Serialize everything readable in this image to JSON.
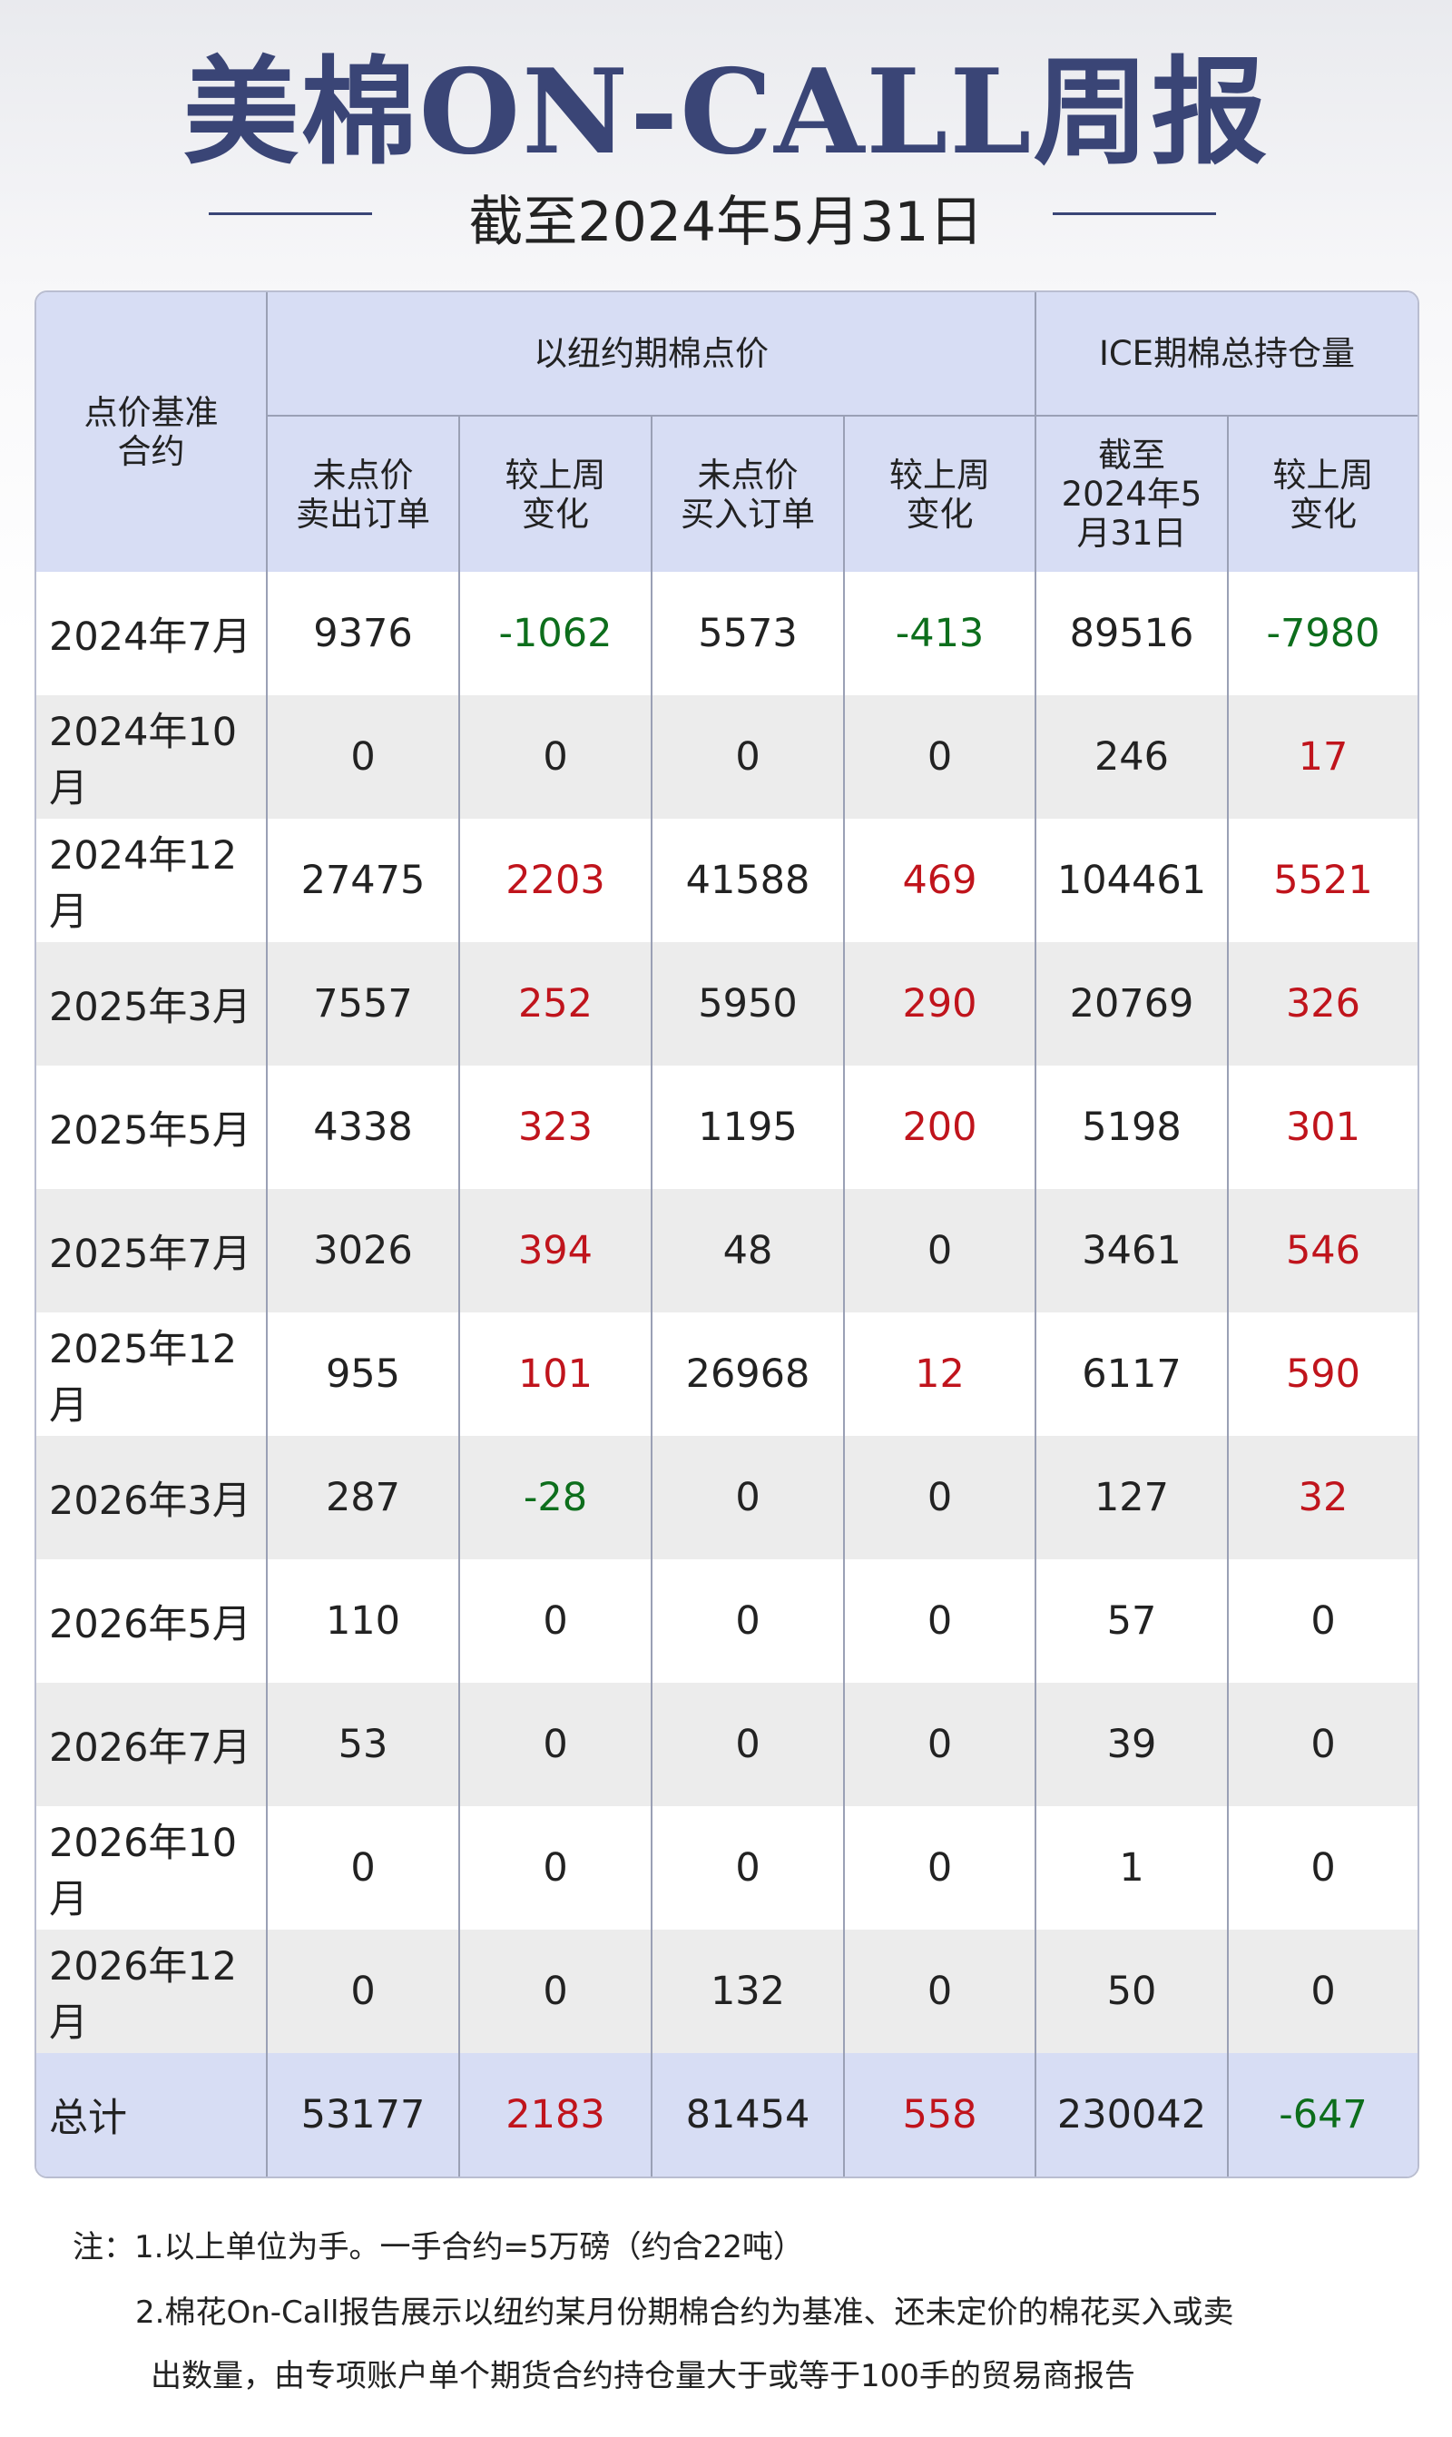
{
  "header": {
    "title": "美棉ON-CALL周报",
    "subtitle": "截至2024年5月31日"
  },
  "table": {
    "group_headers": [
      "点价基准\n合约",
      "以纽约期棉点价",
      "ICE期棉总持仓量"
    ],
    "sub_headers": [
      "未点价\n卖出订单",
      "较上周\n变化",
      "未点价\n买入订单",
      "较上周\n变化",
      "截至\n2024年5\n月31日",
      "较上周\n变化"
    ],
    "rows": [
      [
        "2024年7月",
        9376,
        -1062,
        5573,
        -413,
        89516,
        -7980
      ],
      [
        "2024年10月",
        0,
        0,
        0,
        0,
        246,
        17
      ],
      [
        "2024年12月",
        27475,
        2203,
        41588,
        469,
        104461,
        5521
      ],
      [
        "2025年3月",
        7557,
        252,
        5950,
        290,
        20769,
        326
      ],
      [
        "2025年5月",
        4338,
        323,
        1195,
        200,
        5198,
        301
      ],
      [
        "2025年7月",
        3026,
        394,
        48,
        0,
        3461,
        546
      ],
      [
        "2025年12月",
        955,
        101,
        26968,
        12,
        6117,
        590
      ],
      [
        "2026年3月",
        287,
        -28,
        0,
        0,
        127,
        32
      ],
      [
        "2026年5月",
        110,
        0,
        0,
        0,
        57,
        0
      ],
      [
        "2026年7月",
        53,
        0,
        0,
        0,
        39,
        0
      ],
      [
        "2026年10月",
        0,
        0,
        0,
        0,
        1,
        0
      ],
      [
        "2026年12月",
        0,
        0,
        132,
        0,
        50,
        0
      ]
    ],
    "total": [
      "总计",
      53177,
      2183,
      81454,
      558,
      230042,
      -647
    ]
  },
  "notes": [
    "注：1.以上单位为手。一手合约=5万磅（约合22吨）",
    "2.棉花On-Call报告展示以纽约某月份期棉合约为基准、还未定价的棉花买入或卖",
    "出数量，由专项账户单个期货合约持仓量大于或等于100手的贸易商报告"
  ]
}
